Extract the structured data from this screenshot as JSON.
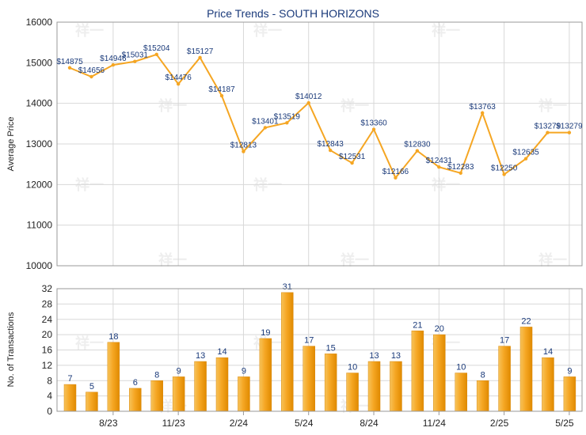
{
  "chart_data": [
    {
      "type": "line",
      "title": "Price Trends - SOUTH HORIZONS",
      "ylabel": "Average Price",
      "ylim": [
        10000,
        16000
      ],
      "yticks": [
        10000,
        11000,
        12000,
        13000,
        14000,
        15000,
        16000
      ],
      "color": "#f5a623",
      "grid": true,
      "values": [
        14875,
        14656,
        14946,
        15031,
        15204,
        14476,
        15127,
        14187,
        12813,
        13401,
        13519,
        14012,
        12843,
        12531,
        13360,
        12166,
        12830,
        12431,
        12283,
        13763,
        12250,
        12635,
        13279,
        13279
      ],
      "labels": [
        "$14875",
        "$14656",
        "$14946",
        "$15031",
        "$15204",
        "$14476",
        "$15127",
        "$14187",
        "$12813",
        "$13401",
        "$13519",
        "$14012",
        "$12843",
        "$12531",
        "$13360",
        "$12166",
        "$12830",
        "$12431",
        "$12283",
        "$13763",
        "$12250",
        "$12635",
        "$13279",
        "$13279"
      ]
    },
    {
      "type": "bar",
      "ylabel": "No. of Transactions",
      "ylim": [
        0,
        32
      ],
      "yticks": [
        0,
        4,
        8,
        12,
        16,
        20,
        24,
        28,
        32
      ],
      "color": "#f5a623",
      "grid": true,
      "values": [
        7,
        5,
        18,
        6,
        8,
        9,
        13,
        14,
        9,
        19,
        31,
        17,
        15,
        10,
        13,
        13,
        21,
        20,
        10,
        8,
        17,
        22,
        14,
        9
      ],
      "xtick_labels": [
        "8/23",
        "11/23",
        "2/24",
        "5/24",
        "8/24",
        "11/24",
        "2/25",
        "5/25"
      ]
    }
  ],
  "watermark": "祥一"
}
